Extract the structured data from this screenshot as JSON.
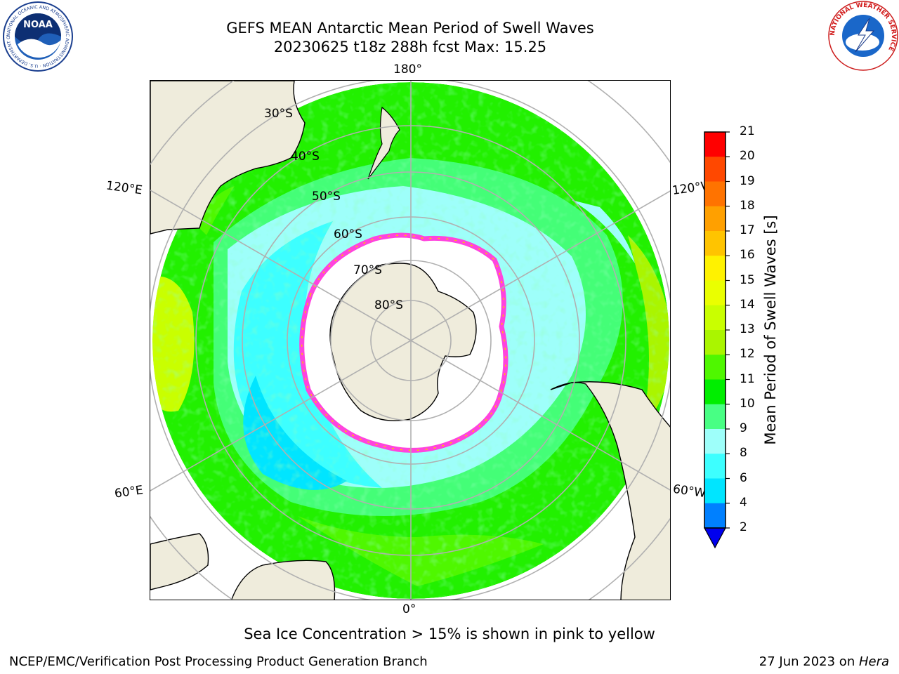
{
  "title": {
    "line1": "GEFS MEAN Antarctic Mean Period of Swell Waves",
    "line2": "20230625 t18z 288h fcst   Max: 15.25"
  },
  "logos": {
    "left_icon": "noaa-logo",
    "left_text": "NOAA",
    "left_ring_text": "NATIONAL OCEANIC AND ATMOSPHERIC ADMINISTRATION · U.S. DEPARTMENT OF COMMERCE",
    "right_icon": "nws-logo",
    "right_ring_text": "NATIONAL WEATHER SERVICE"
  },
  "map": {
    "projection": "south-polar-stereographic",
    "longitude_labels": [
      "180°",
      "120°E",
      "120°W",
      "60°E",
      "60°W",
      "0°"
    ],
    "latitude_labels": [
      "30°S",
      "40°S",
      "50°S",
      "60°S",
      "70°S",
      "80°S"
    ],
    "colors": {
      "land": "#efecdc",
      "ice": "#ffffff",
      "grid": "#b0b0b0",
      "ice_edge": "#ff44dd",
      "coast": "#000000"
    }
  },
  "colorbar": {
    "label": "Mean Period of Swell Waves [s]",
    "ticks": [
      "21",
      "20",
      "19",
      "18",
      "17",
      "16",
      "15",
      "14",
      "13",
      "12",
      "11",
      "10",
      "9",
      "8",
      "6",
      "4",
      "2"
    ],
    "levels": [
      2,
      4,
      6,
      8,
      9,
      10,
      11,
      12,
      13,
      14,
      15,
      16,
      17,
      18,
      19,
      20,
      21
    ],
    "colors": [
      "#0016e6",
      "#0080ff",
      "#00e5ff",
      "#3dffff",
      "#9efffa",
      "#48ff84",
      "#00ee00",
      "#4ff700",
      "#aaf500",
      "#c9ff00",
      "#eaff00",
      "#fff200",
      "#ffc400",
      "#ffa000",
      "#ff7300",
      "#ff4800",
      "#ff0000"
    ],
    "under_color": "#0000ee"
  },
  "note": "Sea Ice Concentration > 15% is shown in pink to yellow",
  "footer": {
    "left": "NCEP/EMC/Verification Post Processing Product Generation Branch",
    "right_prefix": "27 Jun 2023 on ",
    "right_host": "Hera"
  }
}
